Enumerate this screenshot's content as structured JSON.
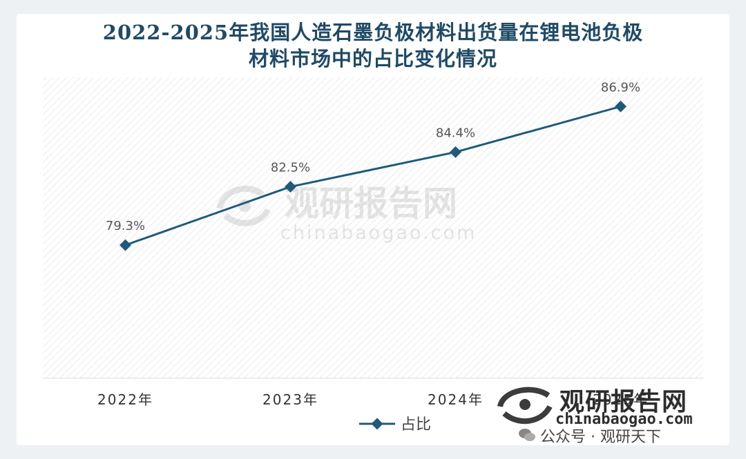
{
  "title_line1": "2022-2025年我国人造石墨负极材料出货量在锂电池负极",
  "title_line2": "材料市场中的占比变化情况",
  "watermark": {
    "center_cn": "观研报告网",
    "center_en": "chinabaogao.com",
    "corner_cn": "观研报告网",
    "corner_en": "chinabaogao.com",
    "corner_pub": "公众号 · 观研天下"
  },
  "colors": {
    "line": "#1f5a7a",
    "title": "#1f4a66",
    "label": "#555555"
  },
  "chart_data": {
    "type": "line",
    "categories": [
      "2022年",
      "2023年",
      "2024年",
      "2025年"
    ],
    "series": [
      {
        "name": "占比",
        "values": [
          79.3,
          82.5,
          84.4,
          86.9
        ],
        "labels": [
          "79.3%",
          "82.5%",
          "84.4%",
          "86.9%"
        ]
      }
    ],
    "ylim": [
      72,
      88.5
    ],
    "grid": false,
    "legend": "bottom"
  }
}
